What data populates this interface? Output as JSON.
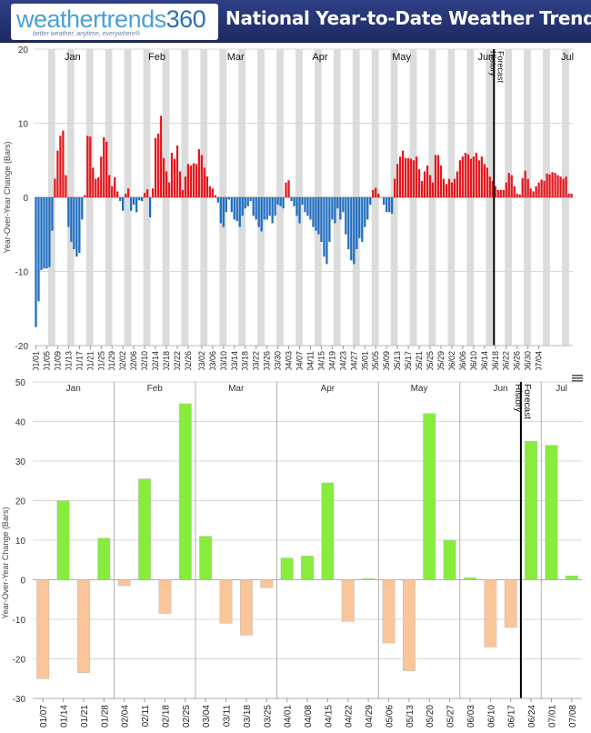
{
  "header": {
    "logo_a": "weathertrends",
    "logo_b": "360",
    "logo_tagline": "better weather, anytime, everywhere®",
    "title": "National Year-to-Date Weather Trends"
  },
  "colors": {
    "daily_positive": "#e3191f",
    "daily_negative": "#1f6dc0",
    "weekly_positive": "#86ed3c",
    "weekly_negative": "#fbc59a",
    "month_band": "#dcdcdc",
    "header_bg": "#23306d"
  },
  "chart_data": [
    {
      "type": "bar",
      "id": "daily",
      "ylabel": "Year-Over-Year Change (Bars)",
      "ylim": [
        -20,
        20
      ],
      "yticks": [
        -20,
        -10,
        0,
        10,
        20
      ],
      "x_tick_labels": [
        "01/01",
        "01/05",
        "01/09",
        "01/13",
        "01/17",
        "01/21",
        "01/25",
        "01/29",
        "02/02",
        "02/06",
        "02/10",
        "02/14",
        "02/18",
        "02/22",
        "02/26",
        "03/02",
        "03/06",
        "03/10",
        "03/14",
        "03/18",
        "03/22",
        "03/26",
        "03/30",
        "04/03",
        "04/07",
        "04/11",
        "04/15",
        "04/19",
        "04/23",
        "04/27",
        "05/01",
        "05/05",
        "05/09",
        "05/13",
        "05/17",
        "05/21",
        "05/25",
        "05/29",
        "06/02",
        "06/06",
        "06/10",
        "06/14",
        "06/18",
        "06/22",
        "06/26",
        "06/30",
        "07/04"
      ],
      "month_labels": [
        "Jan",
        "Feb",
        "Mar",
        "Apr",
        "May",
        "Jun",
        "Jul"
      ],
      "annotations": [
        "History",
        "Forecast"
      ],
      "start_date": "01/01",
      "divider_date": "06/18",
      "values": [
        -17.5,
        -14,
        -9.8,
        -9.6,
        -9.6,
        -9.4,
        -4.5,
        2.5,
        6.3,
        8.3,
        9,
        3,
        -4,
        -6,
        -7,
        -8,
        -7.5,
        -3,
        0.3,
        8.3,
        8.2,
        4,
        2.5,
        2.7,
        5.5,
        8.1,
        7.5,
        3,
        1.5,
        2.7,
        0.8,
        -0.5,
        -1.8,
        0.5,
        1.2,
        -1.8,
        -1,
        -2,
        -0.4,
        -0.5,
        0.6,
        1.1,
        -2.7,
        1.2,
        8,
        8.6,
        11,
        5.3,
        3.5,
        2,
        6,
        5.2,
        7,
        3.5,
        1,
        2.8,
        4.5,
        4.3,
        4.6,
        4.5,
        6.5,
        5.7,
        4,
        2.8,
        1.5,
        1.2,
        0.3,
        -0.7,
        -3.5,
        -4,
        -2,
        -0.3,
        -2,
        -3,
        -3.2,
        -4,
        -2.5,
        -1.5,
        -1.2,
        -0.5,
        -2.5,
        -3,
        -4,
        -4.6,
        -3,
        -3,
        -2.5,
        -3.5,
        -2.5,
        -1,
        -1.2,
        -1.5,
        2,
        2.3,
        -0.5,
        -1.2,
        -2.5,
        -3.5,
        -1,
        -2,
        -2.5,
        -3,
        -4,
        -4.5,
        -5,
        -6,
        -8,
        -9,
        -6,
        -3,
        -3.5,
        -1.5,
        -3,
        -2,
        -5,
        -7,
        -8.5,
        -9,
        -7,
        -5.5,
        -6,
        -4,
        -3,
        -1,
        1,
        1.3,
        0.5,
        0,
        -1,
        -2,
        -2,
        -2.2,
        2.5,
        4.5,
        5.5,
        6.3,
        5.3,
        5.3,
        5.2,
        5,
        5.5,
        3.8,
        2.2,
        3.5,
        4.3,
        3,
        2,
        5.7,
        5.7,
        4.3,
        2.5,
        1.8,
        2.5,
        2,
        2.5,
        3.5,
        5,
        5.5,
        6,
        5.8,
        5.2,
        5.5,
        6,
        5,
        5.5,
        4.5,
        4,
        2.8,
        2.2,
        1.5,
        1,
        1,
        1,
        2,
        3.3,
        3,
        1.5,
        0.5,
        0.4,
        2.6,
        3.6,
        2.5,
        1.2,
        0.8,
        1.5,
        2,
        2.4,
        2.2,
        3.2,
        3.1,
        3.4,
        3.3,
        3,
        2.8,
        2.5,
        2.8,
        0.5,
        0.5
      ]
    },
    {
      "type": "bar",
      "id": "weekly",
      "ylabel": "Year-Over-Year Change (Bars)",
      "ylim": [
        -30,
        50
      ],
      "yticks": [
        -30,
        -20,
        -10,
        0,
        10,
        20,
        30,
        40,
        50
      ],
      "categories": [
        "01/07",
        "01/14",
        "01/21",
        "01/28",
        "02/04",
        "02/11",
        "02/18",
        "02/25",
        "03/04",
        "03/11",
        "03/18",
        "03/25",
        "04/01",
        "04/08",
        "04/15",
        "04/22",
        "04/29",
        "05/06",
        "05/13",
        "05/20",
        "05/27",
        "06/03",
        "06/10",
        "06/17",
        "06/24",
        "07/01",
        "07/08"
      ],
      "values": [
        -25,
        20,
        -23.5,
        10.5,
        -1.5,
        25.5,
        -8.5,
        44.5,
        11,
        -11,
        -14,
        -2,
        5.5,
        6,
        24.5,
        -10.5,
        0.3,
        -16,
        -23,
        42,
        10,
        0.5,
        -17,
        -12,
        35,
        34,
        1
      ],
      "month_labels": [
        "Jan",
        "Feb",
        "Mar",
        "Apr",
        "May",
        "Jun",
        "Jul"
      ],
      "annotations": [
        "History",
        "Forecast"
      ],
      "divider_after_category": "06/17"
    }
  ]
}
